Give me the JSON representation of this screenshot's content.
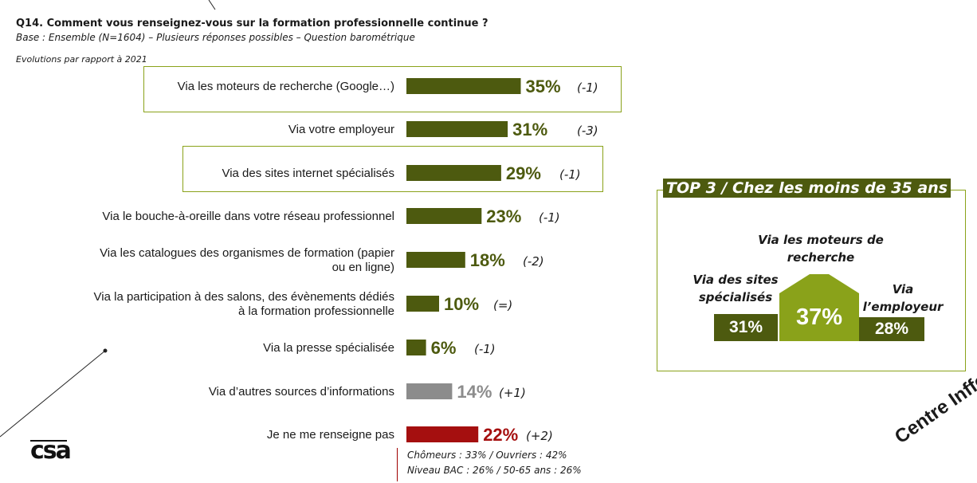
{
  "title": "Q14. Comment vous renseignez-vous sur la formation professionnelle continue ?",
  "subtitle": "Base : Ensemble (N=1604) – Plusieurs réponses possibles – Question barométrique",
  "evolution_note": "Evolutions par rapport à 2021",
  "colors": {
    "main": "#4d5a0f",
    "other": "#8c8c8c",
    "none": "#a50f0f",
    "highlight": "#8aa21a"
  },
  "chart_data": [
    {
      "type": "bar",
      "orientation": "horizontal",
      "categories": [
        "Via les moteurs de recherche (Google…)",
        "Via votre employeur",
        "Via des sites internet spécialisés",
        "Via le bouche-à-oreille dans votre réseau professionnel",
        "Via les catalogues des organismes de formation (papier ou en ligne)",
        "Via la participation à des salons, des évènements dédiés à la formation professionnelle",
        "Via la presse spécialisée",
        "Via d’autres sources d’informations",
        "Je ne me renseigne pas"
      ],
      "category_lines": [
        [
          "Via les moteurs de recherche (Google…)"
        ],
        [
          "Via votre employeur"
        ],
        [
          "Via des sites internet spécialisés"
        ],
        [
          "Via le bouche-à-oreille dans votre réseau professionnel"
        ],
        [
          "Via les catalogues des organismes de formation (papier",
          "ou en ligne)"
        ],
        [
          "Via la participation à des salons, des évènements dédiés",
          "à la formation professionnelle"
        ],
        [
          "Via la presse spécialisée"
        ],
        [
          "Via d’autres sources d’informations"
        ],
        [
          "Je ne me renseigne pas"
        ]
      ],
      "values": [
        35,
        31,
        29,
        23,
        18,
        10,
        6,
        14,
        22
      ],
      "value_labels": [
        "35%",
        "31%",
        "29%",
        "23%",
        "18%",
        "10%",
        "6%",
        "14%",
        "22%"
      ],
      "deltas": [
        "(-1)",
        "(-3)",
        "(-1)",
        "(-1)",
        "(-2)",
        "(=)",
        "(-1)",
        "(+1)",
        "(+2)"
      ],
      "bar_colors": [
        "#4d5a0f",
        "#4d5a0f",
        "#4d5a0f",
        "#4d5a0f",
        "#4d5a0f",
        "#4d5a0f",
        "#4d5a0f",
        "#8c8c8c",
        "#a50f0f"
      ],
      "highlighted": [
        0,
        2
      ],
      "xlim": [
        0,
        35
      ]
    },
    {
      "type": "bar",
      "title": "TOP 3 / Chez les moins de 35 ans",
      "categories": [
        "Via des sites spécialisés",
        "Via les moteurs de recherche",
        "Via l’employeur"
      ],
      "values": [
        31,
        37,
        28
      ],
      "value_labels": [
        "31%",
        "37%",
        "28%"
      ]
    }
  ],
  "note_lines": [
    "Chômeurs : 33% / Ouvriers : 42%",
    "Niveau BAC : 26% / 50-65 ans : 26%"
  ],
  "top3": {
    "title": "TOP 3 / Chez les moins de 35 ans",
    "left_label": [
      "Via des sites",
      "spécialisés"
    ],
    "center_label": [
      "Via les moteurs de",
      "recherche"
    ],
    "right_label": [
      "Via",
      "l’employeur"
    ],
    "left_value": "31%",
    "center_value": "37%",
    "right_value": "28%"
  },
  "logo_text": "csa",
  "corner_text": "Centre Inffo"
}
